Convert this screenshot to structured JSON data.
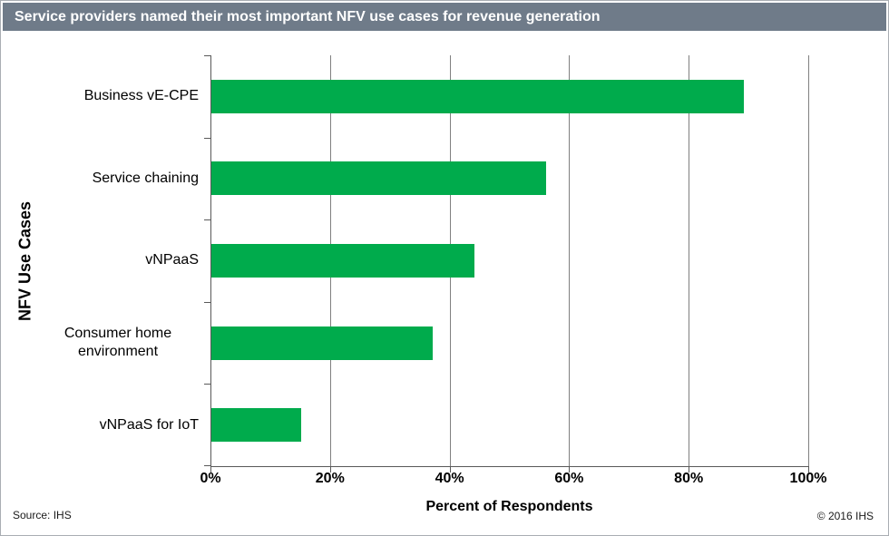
{
  "header": {
    "bg_color": "#6F7B89",
    "text_color": "#FFFFFF"
  },
  "chart_data": {
    "type": "bar",
    "orientation": "horizontal",
    "title": "Service providers named their most important NFV use cases for revenue generation",
    "categories": [
      "Business vE-CPE",
      "Service chaining",
      "vNPaaS",
      "Consumer home environment",
      "vNPaaS for IoT"
    ],
    "values": [
      89,
      56,
      44,
      37,
      15
    ],
    "xlabel": "Percent of Respondents",
    "ylabel": "NFV Use Cases",
    "xlim": [
      0,
      100
    ],
    "x_tick_labels": [
      "0%",
      "20%",
      "40%",
      "60%",
      "80%",
      "100%"
    ],
    "x_tick_values": [
      0,
      20,
      40,
      60,
      80,
      100
    ],
    "grid": true,
    "legend": false,
    "bar_color": "#00AB4C",
    "gridline_color": "#808080",
    "axis_color": "#595959"
  },
  "footer": {
    "source": "Source: IHS",
    "copyright": "© 2016 IHS"
  }
}
